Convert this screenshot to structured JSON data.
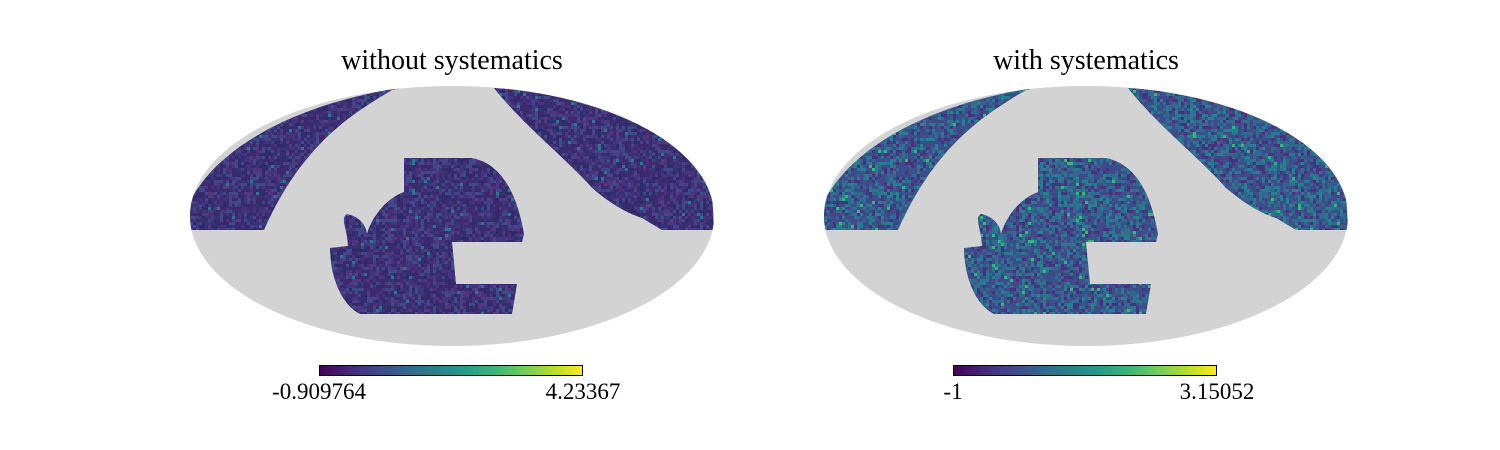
{
  "chart_data": [
    {
      "type": "heatmap",
      "projection": "mollweide",
      "title": "without systematics",
      "colormap": "viridis",
      "colorbar": {
        "min_label": "-0.909764",
        "max_label": "4.23367",
        "min": -0.909764,
        "max": 4.23367
      },
      "masked_color": "#d3d3d3",
      "pixel_colors": [
        "#3b2a6e",
        "#46327e",
        "#3e4a89",
        "#2c2c6a",
        "#52397f",
        "#33376e",
        "#2a788e"
      ],
      "pixel_weights": [
        0.34,
        0.2,
        0.16,
        0.12,
        0.1,
        0.06,
        0.02
      ]
    },
    {
      "type": "heatmap",
      "projection": "mollweide",
      "title": "with systematics",
      "colormap": "viridis",
      "colorbar": {
        "min_label": "-1",
        "max_label": "3.15052",
        "min": -1,
        "max": 3.15052
      },
      "masked_color": "#d3d3d3",
      "pixel_colors": [
        "#3e4a89",
        "#31688e",
        "#46327e",
        "#2a788e",
        "#3b528b",
        "#26828e",
        "#35b779"
      ],
      "pixel_weights": [
        0.28,
        0.2,
        0.16,
        0.14,
        0.12,
        0.08,
        0.02
      ]
    }
  ]
}
